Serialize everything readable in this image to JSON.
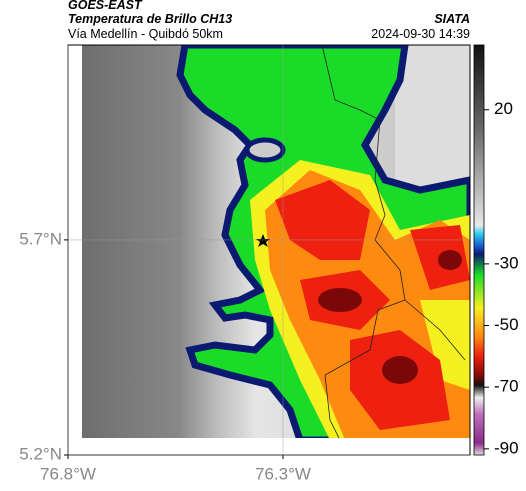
{
  "header": {
    "title": "GOES-EAST",
    "subtitle": "Temperatura de Brillo CH13",
    "region": "Vía Medellín - Quibdó 50km",
    "source": "SIATA",
    "timestamp": "2024-09-30 14:39"
  },
  "map": {
    "xlim": [
      -76.8,
      -75.865
    ],
    "ylim": [
      5.2,
      6.153
    ],
    "xticks": [
      {
        "value": -76.8,
        "label": "76.8°W"
      },
      {
        "value": -76.3,
        "label": "76.3°W"
      }
    ],
    "yticks": [
      {
        "value": 5.2,
        "label": "5.2°N"
      },
      {
        "value": 5.7,
        "label": "5.7°N"
      }
    ],
    "grid": true
  },
  "colorbar": {
    "lim": [
      -92,
      41
    ],
    "ticks": [
      20,
      -30,
      -50,
      -70,
      -90
    ]
  }
}
